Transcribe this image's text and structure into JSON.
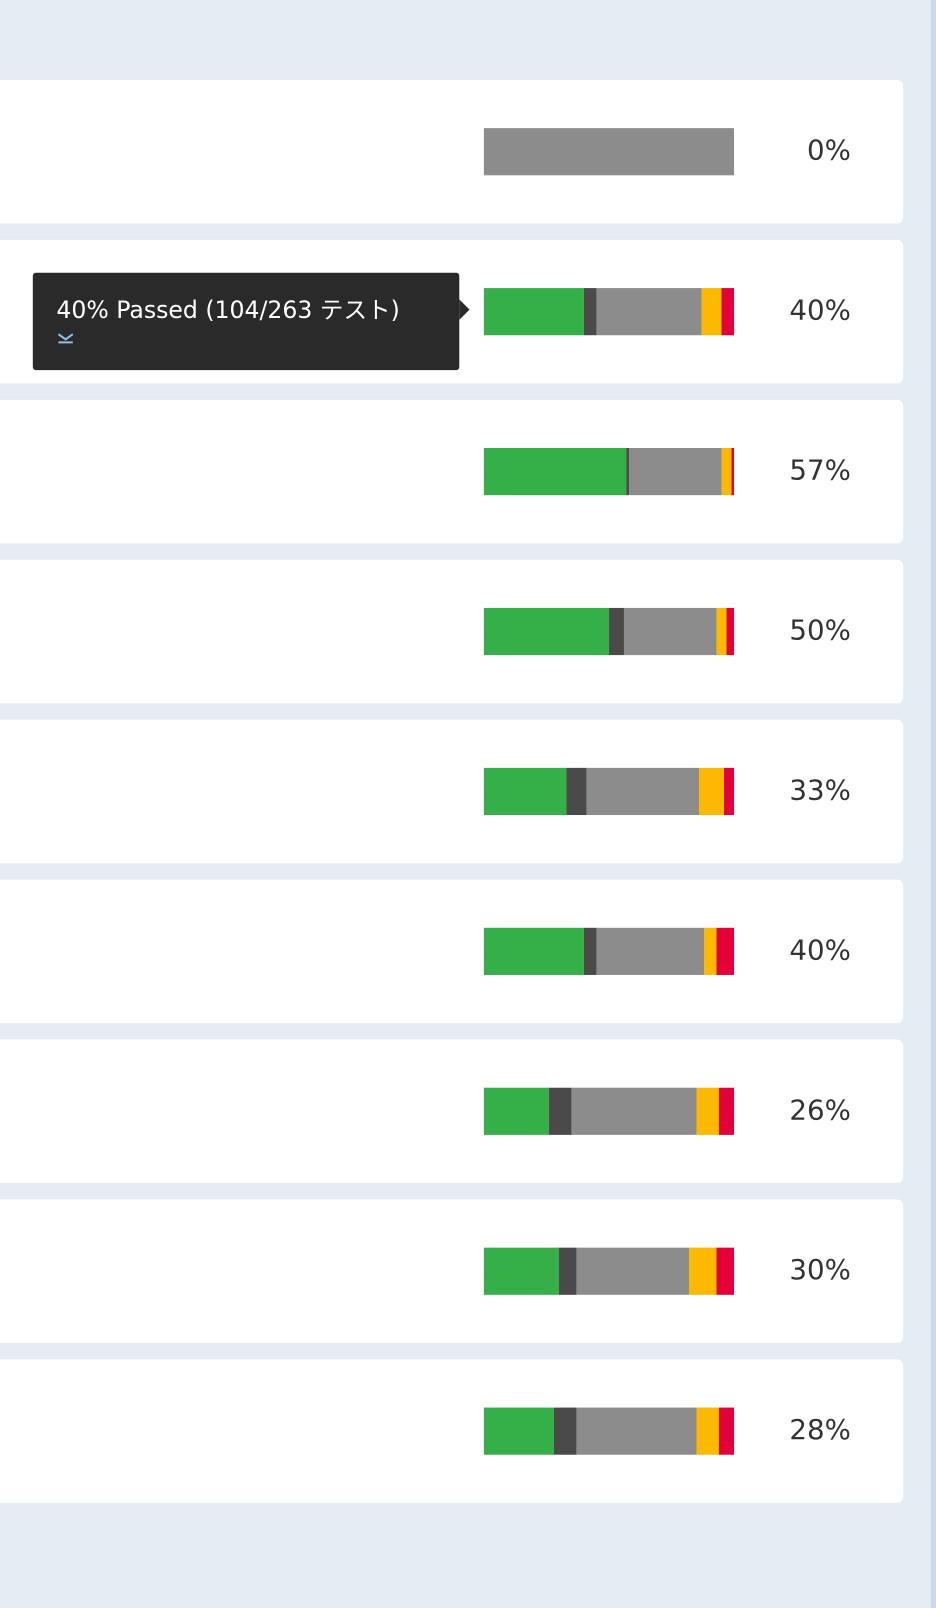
{
  "colors": [
    "#35b048",
    "#4a4a4a",
    "#8c8c8c",
    "#fdb900",
    "#e4003a"
  ],
  "rows": [
    {
      "segments": [
        0,
        0,
        100,
        0,
        0
      ],
      "label": "0%"
    },
    {
      "segments": [
        40,
        5,
        42,
        8,
        5
      ],
      "label": "40%"
    },
    {
      "segments": [
        57,
        1,
        37,
        4,
        1
      ],
      "label": "57%"
    },
    {
      "segments": [
        50,
        6,
        37,
        4,
        3
      ],
      "label": "50%"
    },
    {
      "segments": [
        33,
        8,
        45,
        10,
        4
      ],
      "label": "33%"
    },
    {
      "segments": [
        40,
        5,
        43,
        5,
        7
      ],
      "label": "40%"
    },
    {
      "segments": [
        26,
        9,
        50,
        9,
        6
      ],
      "label": "26%"
    },
    {
      "segments": [
        30,
        7,
        45,
        11,
        7
      ],
      "label": "30%"
    },
    {
      "segments": [
        28,
        9,
        48,
        9,
        6
      ],
      "label": "28%"
    }
  ],
  "tooltip": {
    "text": "40% Passed (104/263 テスト)"
  }
}
